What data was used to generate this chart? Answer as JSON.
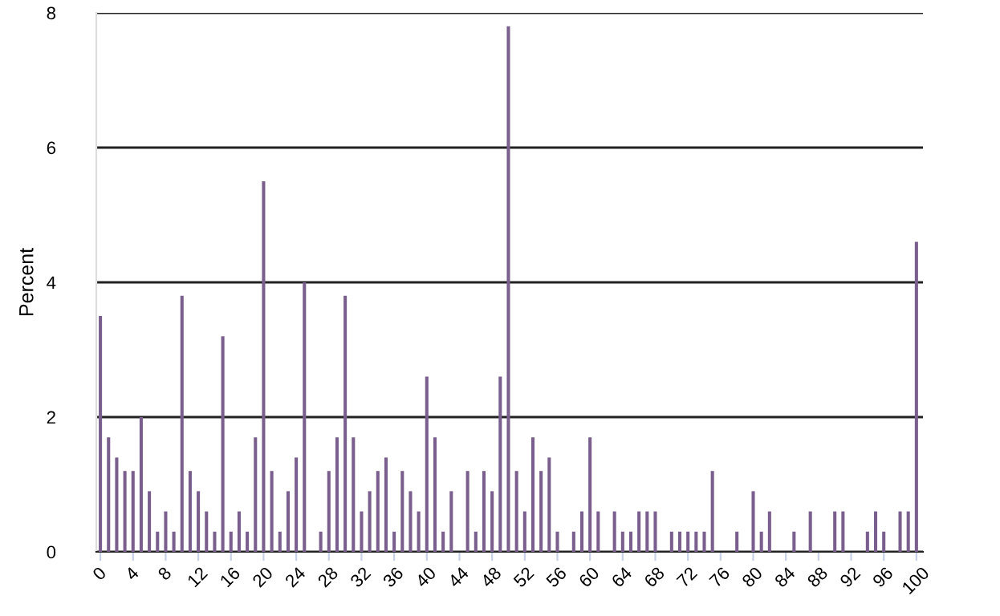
{
  "chart_data": {
    "type": "bar",
    "ylabel": "Percent",
    "x": [
      0,
      1,
      2,
      3,
      4,
      5,
      6,
      7,
      8,
      9,
      10,
      11,
      12,
      13,
      14,
      15,
      16,
      17,
      18,
      19,
      20,
      21,
      22,
      23,
      24,
      25,
      26,
      27,
      28,
      29,
      30,
      31,
      32,
      33,
      34,
      35,
      36,
      37,
      38,
      39,
      40,
      41,
      42,
      43,
      44,
      45,
      46,
      47,
      48,
      49,
      50,
      51,
      52,
      53,
      54,
      55,
      56,
      57,
      58,
      59,
      60,
      61,
      62,
      63,
      64,
      65,
      66,
      67,
      68,
      69,
      70,
      71,
      72,
      73,
      74,
      75,
      76,
      77,
      78,
      79,
      80,
      81,
      82,
      83,
      84,
      85,
      86,
      87,
      88,
      89,
      90,
      91,
      92,
      93,
      94,
      95,
      96,
      97,
      98,
      99,
      100
    ],
    "values": [
      3.5,
      1.7,
      1.4,
      1.2,
      1.2,
      2.0,
      0.9,
      0.3,
      0.6,
      0.3,
      3.8,
      1.2,
      0.9,
      0.6,
      0.3,
      3.2,
      0.3,
      0.6,
      0.3,
      1.7,
      5.5,
      1.2,
      0.3,
      0.9,
      1.4,
      4.0,
      0,
      0.3,
      1.2,
      1.7,
      3.8,
      1.7,
      0.6,
      0.9,
      1.2,
      1.4,
      0.3,
      1.2,
      0.9,
      0.6,
      2.6,
      1.7,
      0.3,
      0.9,
      0,
      1.2,
      0.3,
      1.2,
      0.9,
      2.6,
      7.8,
      1.2,
      0.6,
      1.7,
      1.2,
      1.4,
      0.3,
      0,
      0.3,
      0.6,
      1.7,
      0.6,
      0,
      0.6,
      0.3,
      0.3,
      0.6,
      0.6,
      0.6,
      0,
      0.3,
      0.3,
      0.3,
      0.3,
      0.3,
      1.2,
      0,
      0,
      0.3,
      0,
      0.9,
      0.3,
      0.6,
      0,
      0,
      0.3,
      0,
      0.6,
      0,
      0,
      0.6,
      0.6,
      0,
      0,
      0.3,
      0.6,
      0.3,
      0,
      0.6,
      0.6,
      4.6
    ],
    "color": "#7a5f8e",
    "xlim": [
      -0.5,
      100.8
    ],
    "xticks": [
      0,
      4,
      8,
      12,
      16,
      20,
      24,
      28,
      32,
      36,
      40,
      44,
      48,
      52,
      56,
      60,
      64,
      68,
      72,
      76,
      80,
      84,
      88,
      92,
      96,
      100
    ],
    "ylim": [
      0,
      8
    ],
    "yticks": [
      0,
      2,
      4,
      6,
      8
    ],
    "grid": "y",
    "legend": false
  }
}
